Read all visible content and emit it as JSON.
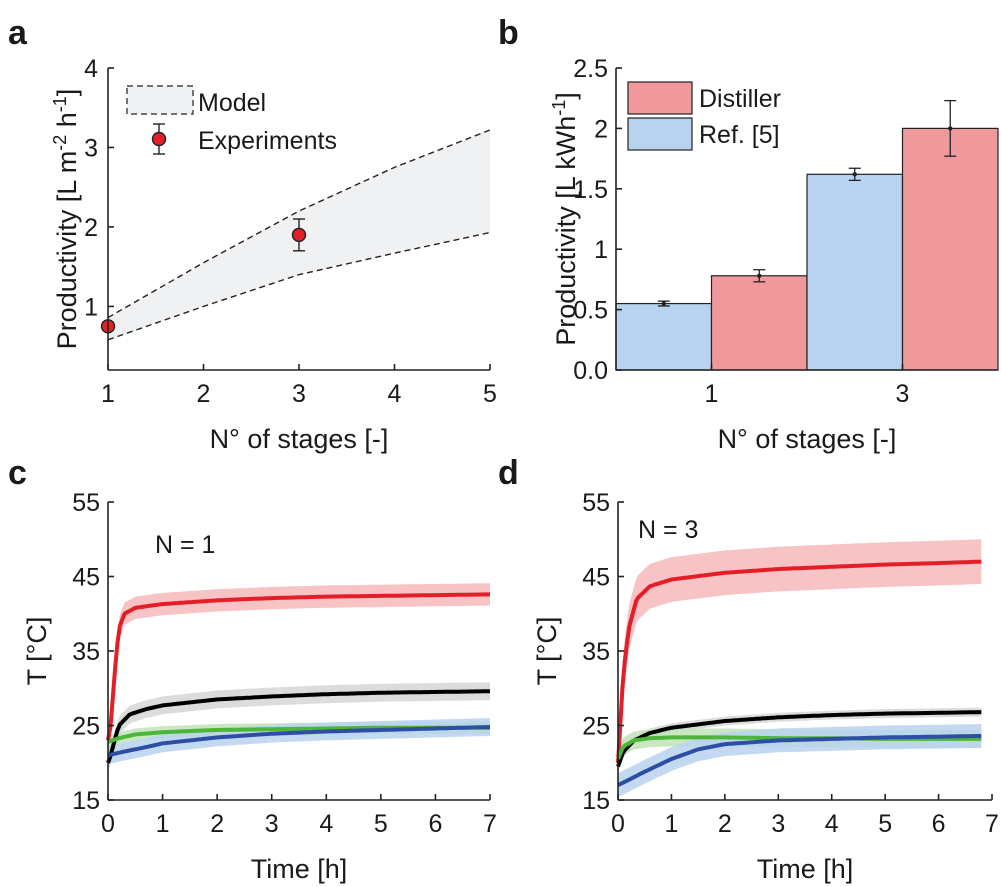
{
  "colors": {
    "red": "#e41e26",
    "red_band": "#f6b9bb",
    "black": "#000000",
    "black_band": "#d6d6d6",
    "green": "#4cb53a",
    "green_band": "#bfe3b6",
    "blue": "#2d4fa3",
    "blue_band": "#b7d2ee",
    "bar_red": "#f0999c",
    "bar_blue": "#b8d3ef",
    "model_fill": "#f0f1f3"
  },
  "chart_data": [
    {
      "panel": "a",
      "type": "scatter",
      "xlabel": "N° of stages [-]",
      "ylabel": "Productivity [L m-2 h-1]",
      "ylabel_parts": {
        "base": "Productivity [L m",
        "sup1": "-2",
        "mid": " h",
        "sup2": "-1",
        "end": "]"
      },
      "xlim": [
        1,
        5
      ],
      "ylim": [
        0.2,
        4
      ],
      "xticks": [
        "1",
        "2",
        "3",
        "4",
        "5"
      ],
      "yticks": [
        "1",
        "2",
        "3",
        "4"
      ],
      "legend": [
        "Model",
        "Experiments"
      ],
      "legend_position": "top-left",
      "model_band": {
        "upper": [
          [
            1,
            0.86
          ],
          [
            2,
            1.55
          ],
          [
            3,
            2.2
          ],
          [
            4,
            2.75
          ],
          [
            5,
            3.22
          ]
        ],
        "lower": [
          [
            1,
            0.58
          ],
          [
            2,
            1.0
          ],
          [
            3,
            1.4
          ],
          [
            4,
            1.67
          ],
          [
            5,
            1.93
          ]
        ]
      },
      "experiments": [
        {
          "x": 1,
          "y": 0.75,
          "err": 0.05
        },
        {
          "x": 3,
          "y": 1.9,
          "err": 0.2
        }
      ]
    },
    {
      "panel": "b",
      "type": "bar",
      "xlabel": "N° of stages [-]",
      "ylabel": "Productivity [L kWh-1]",
      "ylabel_parts": {
        "base": "Productivity [L kWh",
        "sup1": "-1",
        "end": "]"
      },
      "categories": [
        "1",
        "3"
      ],
      "ylim": [
        0,
        2.5
      ],
      "yticks": [
        "0.0",
        "0.5",
        "1",
        "1.5",
        "2",
        "2.5"
      ],
      "legend_position": "top-left",
      "series": [
        {
          "name": "Ref. [5]",
          "values": [
            0.55,
            1.62
          ],
          "errors": [
            0.02,
            0.05
          ]
        },
        {
          "name": "Distiller",
          "values": [
            0.78,
            2.0
          ],
          "errors": [
            0.05,
            0.23
          ]
        }
      ]
    },
    {
      "panel": "c",
      "type": "line",
      "annotation": "N = 1",
      "xlabel": "Time [h]",
      "ylabel": "T [°C]",
      "xlim": [
        0,
        7
      ],
      "ylim": [
        15,
        55
      ],
      "xticks": [
        "0",
        "1",
        "2",
        "3",
        "4",
        "5",
        "6",
        "7"
      ],
      "yticks": [
        "15",
        "25",
        "35",
        "45",
        "55"
      ],
      "series": [
        {
          "color": "red",
          "x": [
            0,
            0.05,
            0.12,
            0.2,
            0.3,
            0.5,
            1,
            2,
            3,
            4,
            5,
            6,
            7
          ],
          "y": [
            23,
            25,
            32,
            38,
            40,
            40.8,
            41.3,
            41.8,
            42.1,
            42.3,
            42.4,
            42.5,
            42.6
          ],
          "band": 1.5
        },
        {
          "color": "black",
          "x": [
            0,
            0.05,
            0.12,
            0.2,
            0.4,
            0.7,
            1,
            2,
            3,
            4,
            5,
            6,
            7
          ],
          "y": [
            20,
            21,
            23,
            25,
            26.5,
            27.2,
            27.7,
            28.5,
            28.9,
            29.2,
            29.4,
            29.5,
            29.6
          ],
          "band": 1.2
        },
        {
          "color": "green",
          "x": [
            0,
            0.2,
            0.5,
            1,
            2,
            3,
            4,
            5,
            6,
            7
          ],
          "y": [
            22.8,
            23.3,
            23.8,
            24.1,
            24.4,
            24.5,
            24.6,
            24.7,
            24.7,
            24.7
          ],
          "band": 0.8
        },
        {
          "color": "blue",
          "x": [
            0,
            0.3,
            0.7,
            1,
            2,
            3,
            4,
            5,
            6,
            7
          ],
          "y": [
            21,
            21.5,
            22.1,
            22.6,
            23.4,
            23.9,
            24.2,
            24.4,
            24.6,
            24.8
          ],
          "band": 1.2
        }
      ]
    },
    {
      "panel": "d",
      "type": "line",
      "annotation": "N = 3",
      "xlabel": "Time [h]",
      "ylabel": "T [°C]",
      "xlim": [
        0,
        7
      ],
      "ylim": [
        15,
        55
      ],
      "xticks": [
        "0",
        "1",
        "2",
        "3",
        "4",
        "5",
        "6",
        "7"
      ],
      "yticks": [
        "15",
        "25",
        "35",
        "45",
        "55"
      ],
      "series": [
        {
          "color": "red",
          "x": [
            0,
            0.05,
            0.1,
            0.2,
            0.35,
            0.6,
            1,
            2,
            3,
            4,
            5,
            6,
            6.8
          ],
          "y": [
            20,
            26,
            32,
            38,
            42,
            43.7,
            44.6,
            45.5,
            46,
            46.3,
            46.6,
            46.8,
            47
          ],
          "band": 3
        },
        {
          "color": "black",
          "x": [
            0,
            0.1,
            0.3,
            0.6,
            1,
            2,
            3,
            4,
            5,
            6,
            6.8
          ],
          "y": [
            19.5,
            21.5,
            23,
            24,
            24.7,
            25.6,
            26.1,
            26.4,
            26.6,
            26.7,
            26.8
          ],
          "band": 0.6
        },
        {
          "color": "green",
          "x": [
            0,
            0.1,
            0.3,
            0.6,
            1,
            2,
            3,
            4,
            5,
            6,
            6.8
          ],
          "y": [
            20.5,
            22.2,
            23,
            23.3,
            23.4,
            23.4,
            23.3,
            23.3,
            23.2,
            23.2,
            23.2
          ],
          "band": 1.2
        },
        {
          "color": "blue",
          "x": [
            0,
            0.2,
            0.5,
            1,
            1.5,
            2,
            3,
            4,
            5,
            6,
            6.8
          ],
          "y": [
            17,
            17.7,
            18.8,
            20.5,
            21.8,
            22.5,
            23,
            23.2,
            23.4,
            23.5,
            23.6
          ],
          "band": 1.6
        }
      ]
    }
  ]
}
